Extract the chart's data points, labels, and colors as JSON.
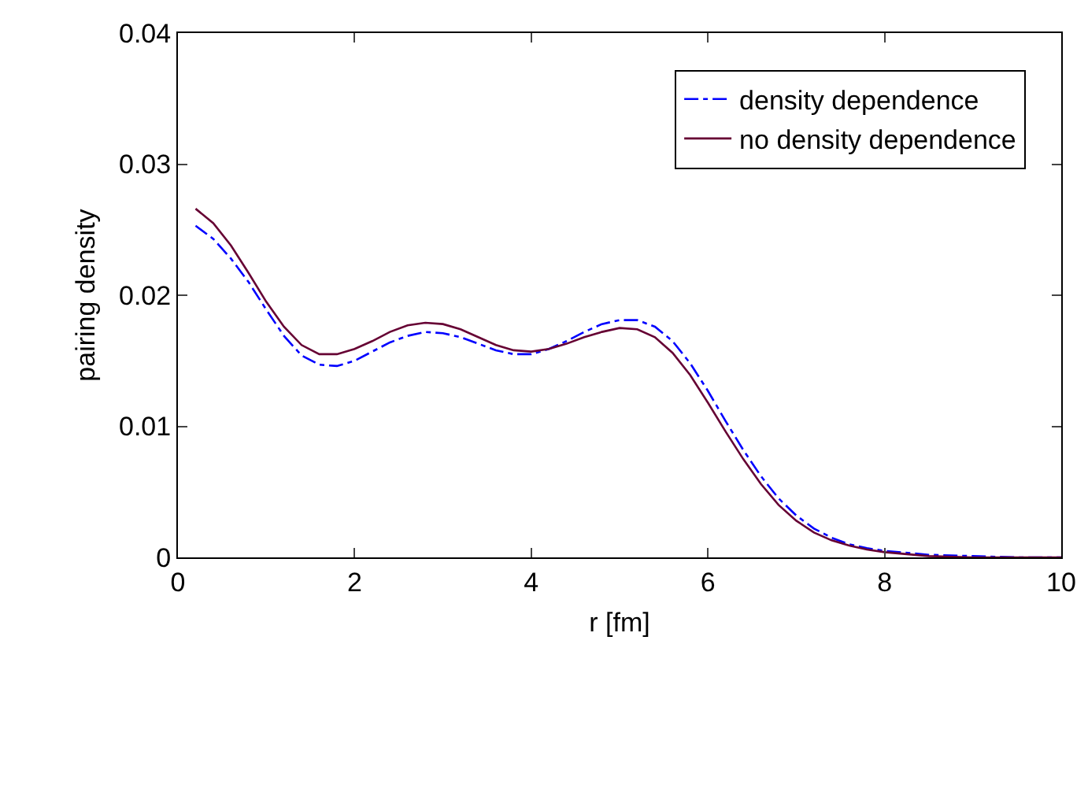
{
  "chart_data": {
    "type": "line",
    "xlabel": "r [fm]",
    "ylabel": "pairing density",
    "x": [
      0.2,
      0.4,
      0.6,
      0.8,
      1.0,
      1.2,
      1.4,
      1.6,
      1.8,
      2.0,
      2.2,
      2.4,
      2.6,
      2.8,
      3.0,
      3.2,
      3.4,
      3.6,
      3.8,
      4.0,
      4.2,
      4.4,
      4.6,
      4.8,
      5.0,
      5.2,
      5.4,
      5.6,
      5.8,
      6.0,
      6.2,
      6.4,
      6.6,
      6.8,
      7.0,
      7.2,
      7.4,
      7.6,
      7.8,
      8.0,
      8.5,
      9.0,
      9.5,
      10.0
    ],
    "series": [
      {
        "name": "density dependence",
        "color": "#0000ff",
        "line_style": "dashed",
        "values": [
          0.0253,
          0.0243,
          0.0228,
          0.021,
          0.0189,
          0.0169,
          0.0154,
          0.0147,
          0.0146,
          0.015,
          0.0157,
          0.0164,
          0.0169,
          0.0172,
          0.0171,
          0.0168,
          0.0163,
          0.0158,
          0.0155,
          0.0155,
          0.0159,
          0.0165,
          0.0172,
          0.0178,
          0.0181,
          0.0181,
          0.0176,
          0.0165,
          0.0148,
          0.0127,
          0.0104,
          0.0082,
          0.0062,
          0.0045,
          0.0032,
          0.0022,
          0.0015,
          0.001,
          0.0007,
          0.0005,
          0.0002,
          0.0001,
          0.0,
          0.0
        ]
      },
      {
        "name": "no density dependence",
        "color": "#660033",
        "line_style": "solid",
        "values": [
          0.0266,
          0.0255,
          0.0238,
          0.0217,
          0.0195,
          0.0176,
          0.0162,
          0.0155,
          0.0155,
          0.0159,
          0.0165,
          0.0172,
          0.0177,
          0.0179,
          0.0178,
          0.0174,
          0.0168,
          0.0162,
          0.0158,
          0.0157,
          0.0159,
          0.0163,
          0.0168,
          0.0172,
          0.0175,
          0.0174,
          0.0168,
          0.0156,
          0.0139,
          0.0118,
          0.0096,
          0.0075,
          0.0056,
          0.004,
          0.0028,
          0.0019,
          0.0013,
          0.0009,
          0.0006,
          0.0004,
          0.0001,
          0.0,
          0.0,
          0.0
        ]
      }
    ],
    "xlim": [
      0,
      10
    ],
    "xticks": [
      0,
      2,
      4,
      6,
      8,
      10
    ],
    "ylim": [
      0,
      0.04
    ],
    "yticks": [
      0,
      0.01,
      0.02,
      0.03,
      0.04
    ],
    "grid": false,
    "legend": "top right",
    "marker": "none"
  }
}
